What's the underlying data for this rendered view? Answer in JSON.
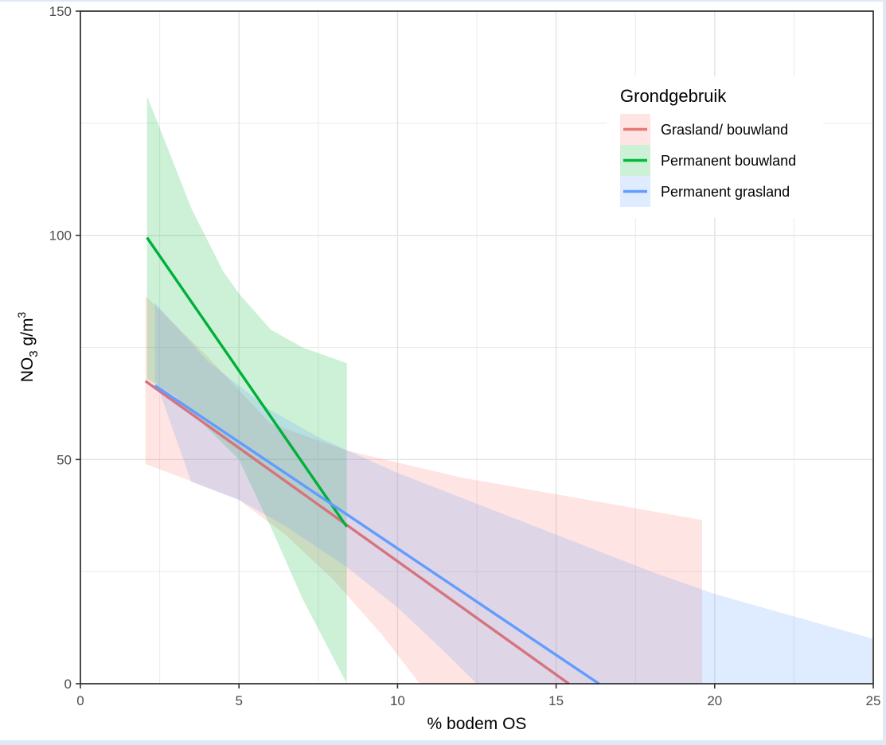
{
  "chart_data": {
    "type": "line",
    "title": "",
    "xlabel": "% bodem OS",
    "ylabel": {
      "main": "NO",
      "subscript": "3",
      "unit": " g/m",
      "superscript": "3"
    },
    "xlim": [
      0,
      25
    ],
    "ylim": [
      0,
      150
    ],
    "x_ticks": [
      0,
      5,
      10,
      15,
      20,
      25
    ],
    "x_tick_labels": [
      "0",
      "5",
      "10",
      "15",
      "20",
      "25"
    ],
    "y_ticks": [
      0,
      50,
      100,
      150
    ],
    "y_tick_labels": [
      "0",
      "50",
      "100",
      "150"
    ],
    "x_minor_grid": [
      2.5,
      7.5,
      12.5,
      17.5,
      22.5
    ],
    "y_minor_grid": [
      25,
      75,
      125
    ],
    "grid": true,
    "legend": {
      "title": "Grondgebruik",
      "placement": "top-right"
    },
    "series": [
      {
        "name": "Grasland/ bouwland",
        "color": "#e6797a",
        "line_color": "#d6747e",
        "band_color": "#f8766d",
        "band_opacity": 0.2,
        "line": {
          "x": [
            2.05,
            15.4
          ],
          "y": [
            67.5,
            0
          ]
        },
        "ci_upper": {
          "x": [
            2.05,
            4,
            6,
            8.4,
            12,
            16,
            19.6
          ],
          "y": [
            86.5,
            73,
            58,
            52,
            46,
            41,
            36.5
          ]
        },
        "ci_lower": {
          "x": [
            2.05,
            3,
            5,
            6.5,
            8,
            9.5,
            10.7
          ],
          "y": [
            49,
            46.5,
            41,
            33,
            23,
            11,
            0
          ]
        },
        "ci_xmax": 19.6
      },
      {
        "name": "Permanent bouwland",
        "color": "#00ba38",
        "line_color": "#00b03a",
        "band_color": "#00ba38",
        "band_opacity": 0.2,
        "line": {
          "x": [
            2.1,
            8.4
          ],
          "y": [
            99.5,
            35
          ]
        },
        "ci_upper": {
          "x": [
            2.1,
            2.5,
            3.5,
            4.5,
            5,
            6,
            7,
            8.4
          ],
          "y": [
            131,
            124,
            106,
            92,
            87,
            79,
            75,
            71.5
          ]
        },
        "ci_lower": {
          "x": [
            2.1,
            3,
            5,
            6,
            7,
            8.4
          ],
          "y": [
            68,
            64,
            50,
            35,
            19,
            0
          ]
        },
        "ci_xmax": 8.4
      },
      {
        "name": "Permanent grasland",
        "color": "#619cff",
        "line_color": "#619cff",
        "band_color": "#619cff",
        "band_opacity": 0.2,
        "line": {
          "x": [
            2.35,
            16.35
          ],
          "y": [
            66.5,
            0
          ]
        },
        "ci_upper": {
          "x": [
            2.35,
            4,
            6,
            7.5,
            10,
            14,
            18,
            20,
            25
          ],
          "y": [
            85,
            72,
            61,
            55,
            47,
            36,
            25,
            20,
            10
          ]
        },
        "ci_lower": {
          "x": [
            2.35,
            3.5,
            5,
            6.5,
            8.4,
            10,
            11.5,
            12.5
          ],
          "y": [
            68,
            45,
            41,
            35,
            26,
            17,
            7,
            0
          ]
        },
        "ci_xmax": 25
      }
    ]
  }
}
